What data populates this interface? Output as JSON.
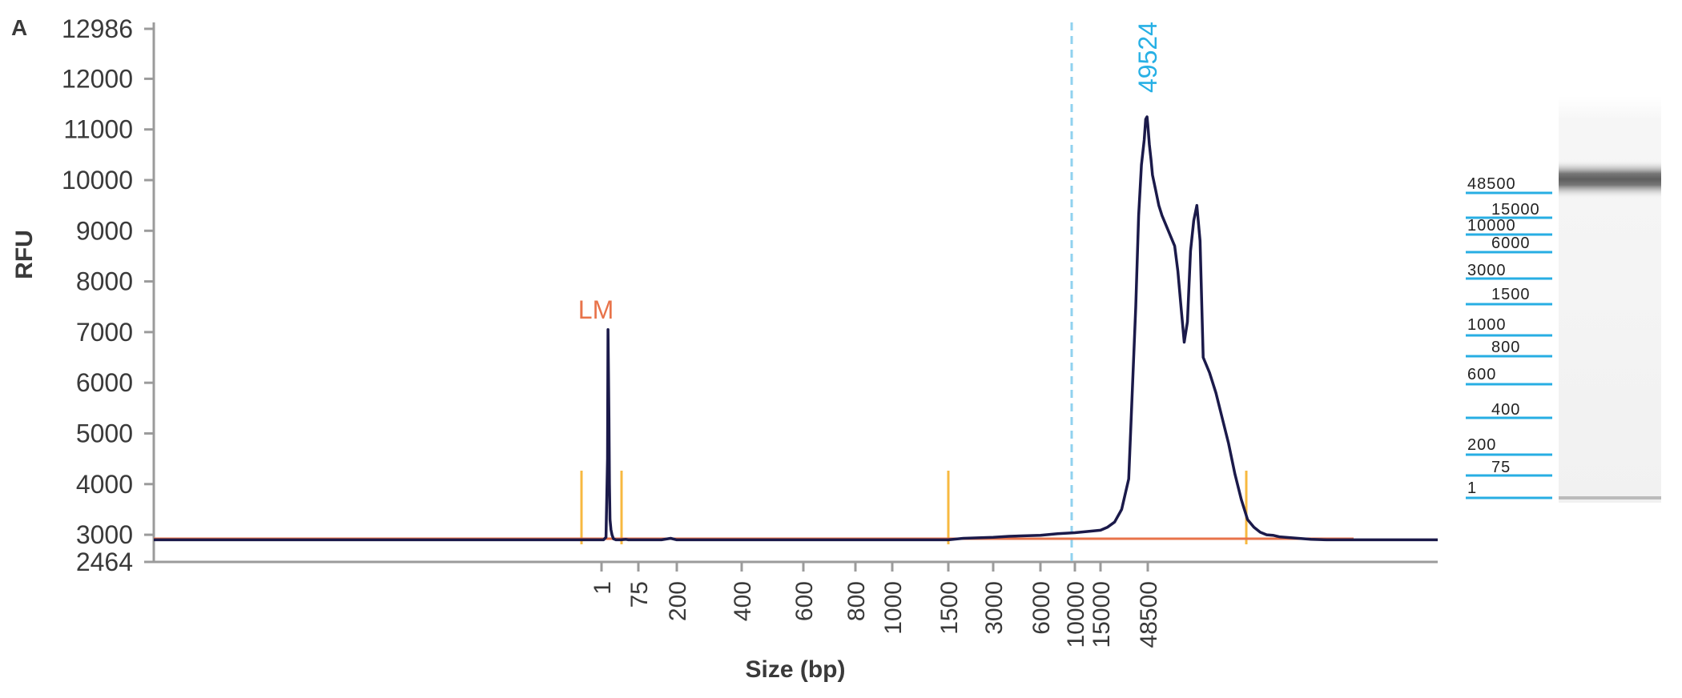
{
  "panel_label": "A",
  "chart_data": {
    "type": "line",
    "xlabel": "Size (bp)",
    "ylabel": "RFU",
    "ylim": [
      2464,
      12986
    ],
    "yticks": [
      2464,
      3000,
      4000,
      5000,
      6000,
      7000,
      8000,
      9000,
      10000,
      11000,
      12000,
      12986
    ],
    "xticks": [
      "1",
      "75",
      "200",
      "400",
      "600",
      "800",
      "1000",
      "1500",
      "3000",
      "6000",
      "10000",
      "15000",
      "48500"
    ],
    "annotations": {
      "lower_marker": "LM",
      "peak_size": "49524"
    },
    "series": [
      {
        "x": [
          -50,
          5,
          10,
          13,
          14,
          15,
          16,
          17,
          18,
          19,
          20,
          22,
          25,
          30,
          40,
          50,
          55,
          60,
          100,
          150,
          180,
          200,
          220,
          250,
          300,
          400,
          600,
          800,
          1000,
          1500,
          2000,
          3000,
          4000,
          6000,
          8000,
          10000,
          12000,
          15000,
          20000,
          25000,
          30000,
          35000,
          40000,
          42000,
          44000,
          46000,
          47000,
          48000,
          48500,
          49000,
          49524,
          50000,
          51000,
          52000,
          53000,
          55000,
          57000,
          58000,
          59000,
          60000,
          61000,
          62000,
          63000,
          64000,
          65000,
          66000,
          68000,
          70000,
          72000,
          74000,
          76000,
          78000,
          80000,
          82000,
          84000,
          86000,
          88000,
          90000,
          92000,
          94000,
          96000,
          98000,
          100000,
          105000,
          110000,
          120000,
          130000,
          140000
        ],
        "y": [
          2900,
          2900,
          2950,
          4500,
          7050,
          6200,
          5300,
          4000,
          3300,
          3200,
          3100,
          3000,
          2920,
          2900,
          2900,
          2910,
          2900,
          2900,
          2900,
          2900,
          2930,
          2900,
          2900,
          2900,
          2900,
          2900,
          2900,
          2900,
          2900,
          2900,
          2930,
          2950,
          2970,
          2990,
          3020,
          3040,
          3060,
          3090,
          3150,
          3250,
          3500,
          4100,
          7500,
          9300,
          10300,
          10800,
          11200,
          11250,
          11100,
          10700,
          10400,
          10100,
          9800,
          9500,
          9300,
          9000,
          8700,
          8200,
          7500,
          6800,
          7200,
          8600,
          9200,
          9500,
          8800,
          6500,
          6200,
          5800,
          5300,
          4800,
          4200,
          3700,
          3300,
          3150,
          3050,
          3000,
          2990,
          2960,
          2950,
          2940,
          2930,
          2920,
          2910,
          2900,
          2900,
          2900,
          2900,
          2900
        ]
      }
    ]
  },
  "ladder": {
    "labels": [
      "48500",
      "15000",
      "10000",
      "6000",
      "3000",
      "1500",
      "1000",
      "800",
      "600",
      "400",
      "200",
      "75",
      "1"
    ]
  },
  "colors": {
    "trace": "#1b1a4a",
    "baseline": "#e8734a",
    "marker": "#f7b940",
    "peak_line": "#90d2ef",
    "peak_label": "#27b0e5",
    "ladder_line": "#27aee3",
    "axis": "#9b9b9b"
  }
}
